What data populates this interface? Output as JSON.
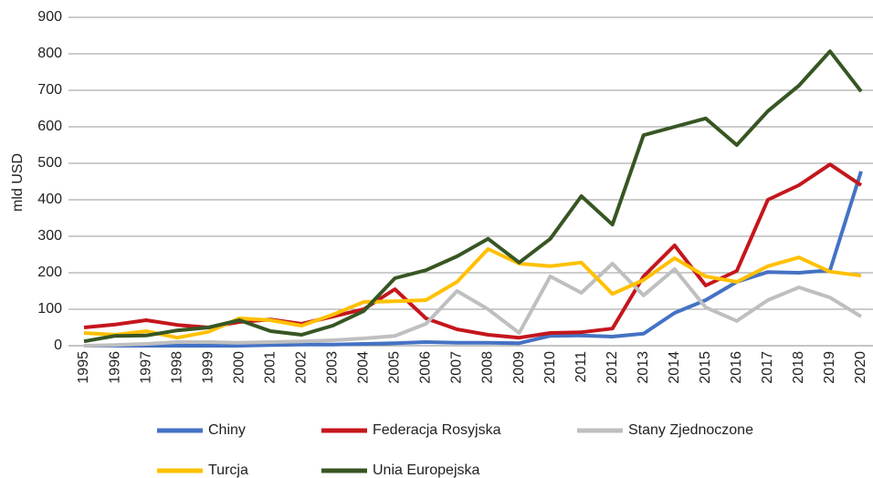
{
  "chart_data": {
    "type": "line",
    "y_label": "mld USD",
    "categories": [
      "1995",
      "1996",
      "1997",
      "1998",
      "1999",
      "2000",
      "2001",
      "2002",
      "2003",
      "2004",
      "2005",
      "2006",
      "2007",
      "2008",
      "2009",
      "2010",
      "2011",
      "2012",
      "2013",
      "2014",
      "2015",
      "2016",
      "2017",
      "2018",
      "2019",
      "2020"
    ],
    "series": [
      {
        "name": "Chiny",
        "color": "#4472c4",
        "values": [
          0,
          0,
          0,
          0,
          0,
          0,
          2,
          3,
          3,
          5,
          7,
          10,
          8,
          8,
          7,
          27,
          28,
          25,
          33,
          90,
          125,
          175,
          202,
          200,
          207,
          478
        ]
      },
      {
        "name": "Federacja Rosyjska",
        "color": "#c4161c",
        "values": [
          50,
          58,
          70,
          57,
          50,
          65,
          72,
          60,
          80,
          100,
          155,
          75,
          45,
          30,
          22,
          35,
          37,
          47,
          190,
          275,
          165,
          205,
          400,
          440,
          497,
          440
        ]
      },
      {
        "name": "Stany Zjednoczone",
        "color": "#bfbfbf",
        "values": [
          0,
          2,
          5,
          10,
          10,
          8,
          10,
          12,
          15,
          20,
          27,
          60,
          150,
          100,
          35,
          190,
          145,
          225,
          138,
          210,
          105,
          68,
          125,
          160,
          132,
          80
        ]
      },
      {
        "name": "Turcja",
        "color": "#ffc000",
        "values": [
          35,
          30,
          40,
          22,
          38,
          75,
          70,
          55,
          85,
          120,
          122,
          125,
          175,
          265,
          225,
          218,
          228,
          142,
          180,
          240,
          190,
          175,
          218,
          242,
          203,
          192
        ]
      },
      {
        "name": "Unia Europejska",
        "color": "#375623",
        "values": [
          12,
          27,
          28,
          42,
          50,
          70,
          40,
          30,
          55,
          95,
          185,
          207,
          245,
          293,
          228,
          293,
          410,
          332,
          577,
          600,
          623,
          550,
          643,
          713,
          807,
          697
        ]
      }
    ],
    "ylim": [
      0,
      900
    ],
    "yticks": [
      0,
      100,
      200,
      300,
      400,
      500,
      600,
      700,
      800,
      900
    ],
    "grid": true
  }
}
